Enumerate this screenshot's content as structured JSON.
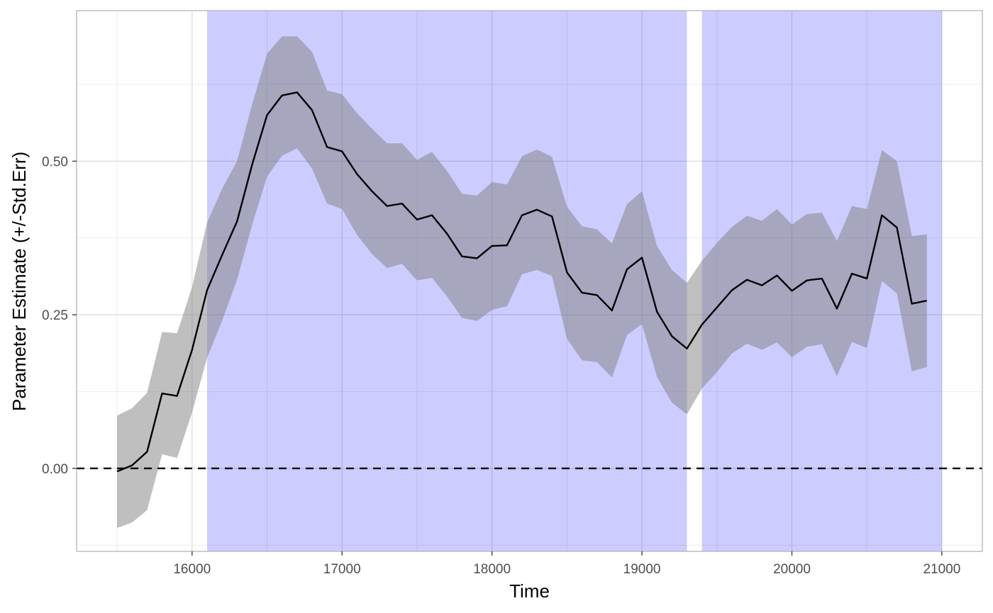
{
  "chart_data": {
    "type": "line",
    "title": "",
    "xlabel": "Time",
    "ylabel": "Parameter Estimate (+/-Std.Err)",
    "xlim": [
      15230,
      21270
    ],
    "ylim": [
      -0.135,
      0.745
    ],
    "x_ticks": [
      16000,
      17000,
      18000,
      19000,
      20000,
      21000
    ],
    "x_tick_labels": [
      "16000",
      "17000",
      "18000",
      "19000",
      "20000",
      "21000"
    ],
    "y_ticks": [
      0.0,
      0.25,
      0.5
    ],
    "y_tick_labels": [
      "0.00",
      "0.25",
      "0.50"
    ],
    "grid": true,
    "legend": "none",
    "reference_line": {
      "y": 0,
      "style": "dashed",
      "color": "#000000"
    },
    "shaded_regions": [
      {
        "x_start": 16100,
        "x_end": 19300,
        "color": "#0000ff",
        "opacity": 0.2
      },
      {
        "x_start": 19400,
        "x_end": 21000,
        "color": "#0000ff",
        "opacity": 0.2
      }
    ],
    "ribbon_color": "#7f7f7f",
    "line_color": "#000000",
    "x": [
      15500,
      15600,
      15700,
      15800,
      15900,
      16000,
      16100,
      16200,
      16300,
      16400,
      16500,
      16600,
      16700,
      16800,
      16900,
      17000,
      17100,
      17200,
      17300,
      17400,
      17500,
      17600,
      17700,
      17800,
      17900,
      18000,
      18100,
      18200,
      18300,
      18400,
      18500,
      18600,
      18700,
      18800,
      18900,
      19000,
      19100,
      19200,
      19300,
      19400,
      19500,
      19600,
      19700,
      19800,
      19900,
      20000,
      20100,
      20200,
      20300,
      20400,
      20500,
      20600,
      20700,
      20800,
      20900
    ],
    "series": [
      {
        "values": [
          -0.005,
          0.005,
          0.027,
          0.122,
          0.118,
          0.193,
          0.29,
          0.347,
          0.402,
          0.494,
          0.575,
          0.607,
          0.612,
          0.583,
          0.523,
          0.516,
          0.479,
          0.451,
          0.427,
          0.431,
          0.405,
          0.412,
          0.382,
          0.345,
          0.342,
          0.362,
          0.363,
          0.412,
          0.421,
          0.41,
          0.319,
          0.286,
          0.282,
          0.257,
          0.324,
          0.343,
          0.255,
          0.215,
          0.195,
          0.234,
          0.262,
          0.29,
          0.307,
          0.298,
          0.314,
          0.289,
          0.306,
          0.309,
          0.26,
          0.317,
          0.309,
          0.412,
          0.392,
          0.268,
          0.273
        ],
        "lower": [
          -0.097,
          -0.088,
          -0.068,
          0.023,
          0.017,
          0.091,
          0.18,
          0.24,
          0.307,
          0.396,
          0.475,
          0.509,
          0.521,
          0.488,
          0.431,
          0.422,
          0.38,
          0.349,
          0.326,
          0.333,
          0.306,
          0.31,
          0.28,
          0.245,
          0.24,
          0.258,
          0.264,
          0.316,
          0.323,
          0.313,
          0.211,
          0.176,
          0.173,
          0.148,
          0.217,
          0.235,
          0.149,
          0.107,
          0.088,
          0.13,
          0.157,
          0.187,
          0.203,
          0.193,
          0.205,
          0.181,
          0.198,
          0.202,
          0.15,
          0.206,
          0.196,
          0.305,
          0.285,
          0.158,
          0.165
        ],
        "upper": [
          0.086,
          0.098,
          0.123,
          0.222,
          0.22,
          0.295,
          0.4,
          0.455,
          0.5,
          0.592,
          0.675,
          0.703,
          0.703,
          0.678,
          0.615,
          0.609,
          0.578,
          0.553,
          0.529,
          0.529,
          0.502,
          0.515,
          0.484,
          0.447,
          0.444,
          0.466,
          0.462,
          0.508,
          0.519,
          0.507,
          0.426,
          0.394,
          0.389,
          0.366,
          0.43,
          0.451,
          0.362,
          0.323,
          0.302,
          0.338,
          0.367,
          0.393,
          0.411,
          0.403,
          0.422,
          0.397,
          0.414,
          0.416,
          0.37,
          0.427,
          0.422,
          0.518,
          0.5,
          0.378,
          0.381
        ]
      }
    ]
  }
}
